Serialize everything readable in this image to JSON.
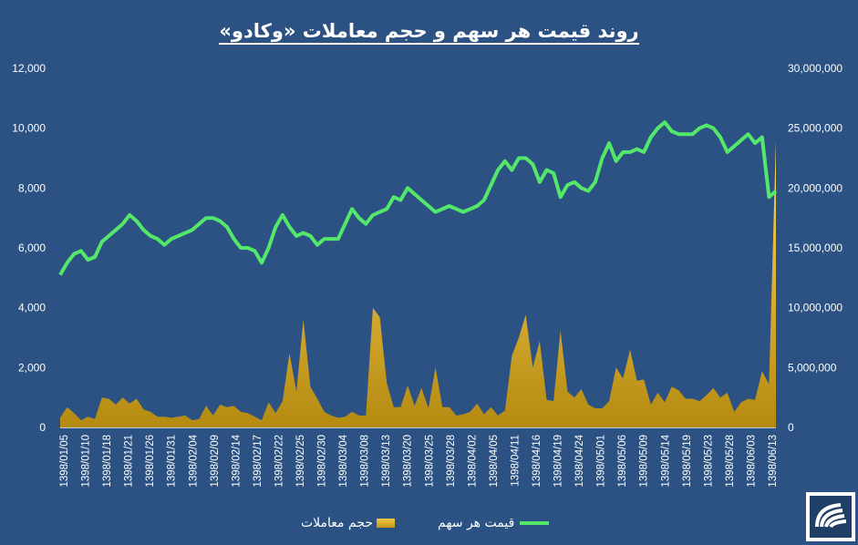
{
  "title": "روند قیمت هر سهم و حجم معاملات «وکادو»",
  "colors": {
    "background": "#2b5283",
    "price_line": "#54e86a",
    "volume_fill": "#d4a21b",
    "text": "#ffffff"
  },
  "legend": {
    "volume_label": "حجم معاملات",
    "price_label": "قیمت هر سهم"
  },
  "logo": {
    "icon": "company-logo-icon"
  },
  "chart_data": {
    "type": "line",
    "x_tick_labels": [
      "1398/01/05",
      "1398/01/10",
      "1398/01/18",
      "1398/01/21",
      "1398/01/26",
      "1398/01/31",
      "1398/02/04",
      "1398/02/09",
      "1398/02/14",
      "1398/02/17",
      "1398/02/22",
      "1398/02/25",
      "1398/02/30",
      "1398/03/04",
      "1398/03/08",
      "1398/03/13",
      "1398/03/20",
      "1398/03/25",
      "1398/03/28",
      "1398/04/02",
      "1398/04/05",
      "1398/04/11",
      "1398/04/16",
      "1398/04/19",
      "1398/04/24",
      "1398/05/01",
      "1398/05/06",
      "1398/05/09",
      "1398/05/14",
      "1398/05/19",
      "1398/05/23",
      "1398/05/28",
      "1398/06/03",
      "1398/06/13"
    ],
    "y_left": {
      "min": 0,
      "max": 12000,
      "ticks": [
        "0",
        "2,000",
        "4,000",
        "6,000",
        "8,000",
        "10,000",
        "12,000"
      ]
    },
    "y_right": {
      "min": 0,
      "max": 30000000,
      "ticks": [
        "0",
        "5,000,000",
        "10,000,000",
        "15,000,000",
        "20,000,000",
        "25,000,000",
        "30,000,000"
      ]
    },
    "grid": false,
    "legend_position": "bottom",
    "series": [
      {
        "name": "قیمت هر سهم",
        "axis": "left",
        "kind": "line",
        "values": [
          5100,
          5500,
          5800,
          5900,
          5600,
          5700,
          6200,
          6400,
          6600,
          6800,
          7100,
          6900,
          6600,
          6400,
          6300,
          6100,
          6300,
          6400,
          6500,
          6600,
          6800,
          7000,
          7000,
          6900,
          6700,
          6300,
          6000,
          6000,
          5900,
          5500,
          6000,
          6700,
          7100,
          6700,
          6400,
          6500,
          6400,
          6100,
          6300,
          6300,
          6300,
          6800,
          7300,
          7000,
          6800,
          7100,
          7200,
          7300,
          7700,
          7600,
          8000,
          7800,
          7600,
          7400,
          7200,
          7300,
          7400,
          7300,
          7200,
          7300,
          7400,
          7600,
          8100,
          8600,
          8900,
          8600,
          9000,
          9000,
          8800,
          8200,
          8600,
          8500,
          7700,
          8100,
          8200,
          8000,
          7900,
          8200,
          9000,
          9500,
          8900,
          9200,
          9200,
          9300,
          9200,
          9700,
          10000,
          10200,
          9900,
          9800,
          9800,
          9800,
          10000,
          10100,
          10000,
          9700,
          9200,
          9400,
          9600,
          9800,
          9500,
          9700,
          7700,
          7900
        ]
      },
      {
        "name": "حجم معاملات",
        "axis": "right",
        "kind": "area",
        "values": [
          800000,
          1700000,
          1200000,
          600000,
          900000,
          700000,
          2500000,
          2400000,
          1900000,
          2500000,
          2000000,
          2400000,
          1500000,
          1300000,
          900000,
          900000,
          800000,
          900000,
          1000000,
          600000,
          700000,
          1800000,
          1000000,
          1900000,
          1700000,
          1800000,
          1300000,
          1200000,
          900000,
          600000,
          2100000,
          1200000,
          2200000,
          6200000,
          3000000,
          9000000,
          3400000,
          2400000,
          1300000,
          1000000,
          800000,
          900000,
          1300000,
          1000000,
          1000000,
          10000000,
          9200000,
          3700000,
          1700000,
          1700000,
          3500000,
          1800000,
          3300000,
          1600000,
          5000000,
          1700000,
          1700000,
          1000000,
          1100000,
          1300000,
          2000000,
          1100000,
          1700000,
          1000000,
          1400000,
          6000000,
          7500000,
          9400000,
          5000000,
          7200000,
          2300000,
          2200000,
          8100000,
          3000000,
          2500000,
          3200000,
          1900000,
          1600000,
          1600000,
          2200000,
          5000000,
          4100000,
          6500000,
          3900000,
          4000000,
          1900000,
          2900000,
          2100000,
          3400000,
          3100000,
          2400000,
          2400000,
          2200000,
          2700000,
          3300000,
          2500000,
          2900000,
          1300000,
          2100000,
          2400000,
          2300000,
          4700000,
          3600000,
          24000000
        ]
      }
    ]
  }
}
